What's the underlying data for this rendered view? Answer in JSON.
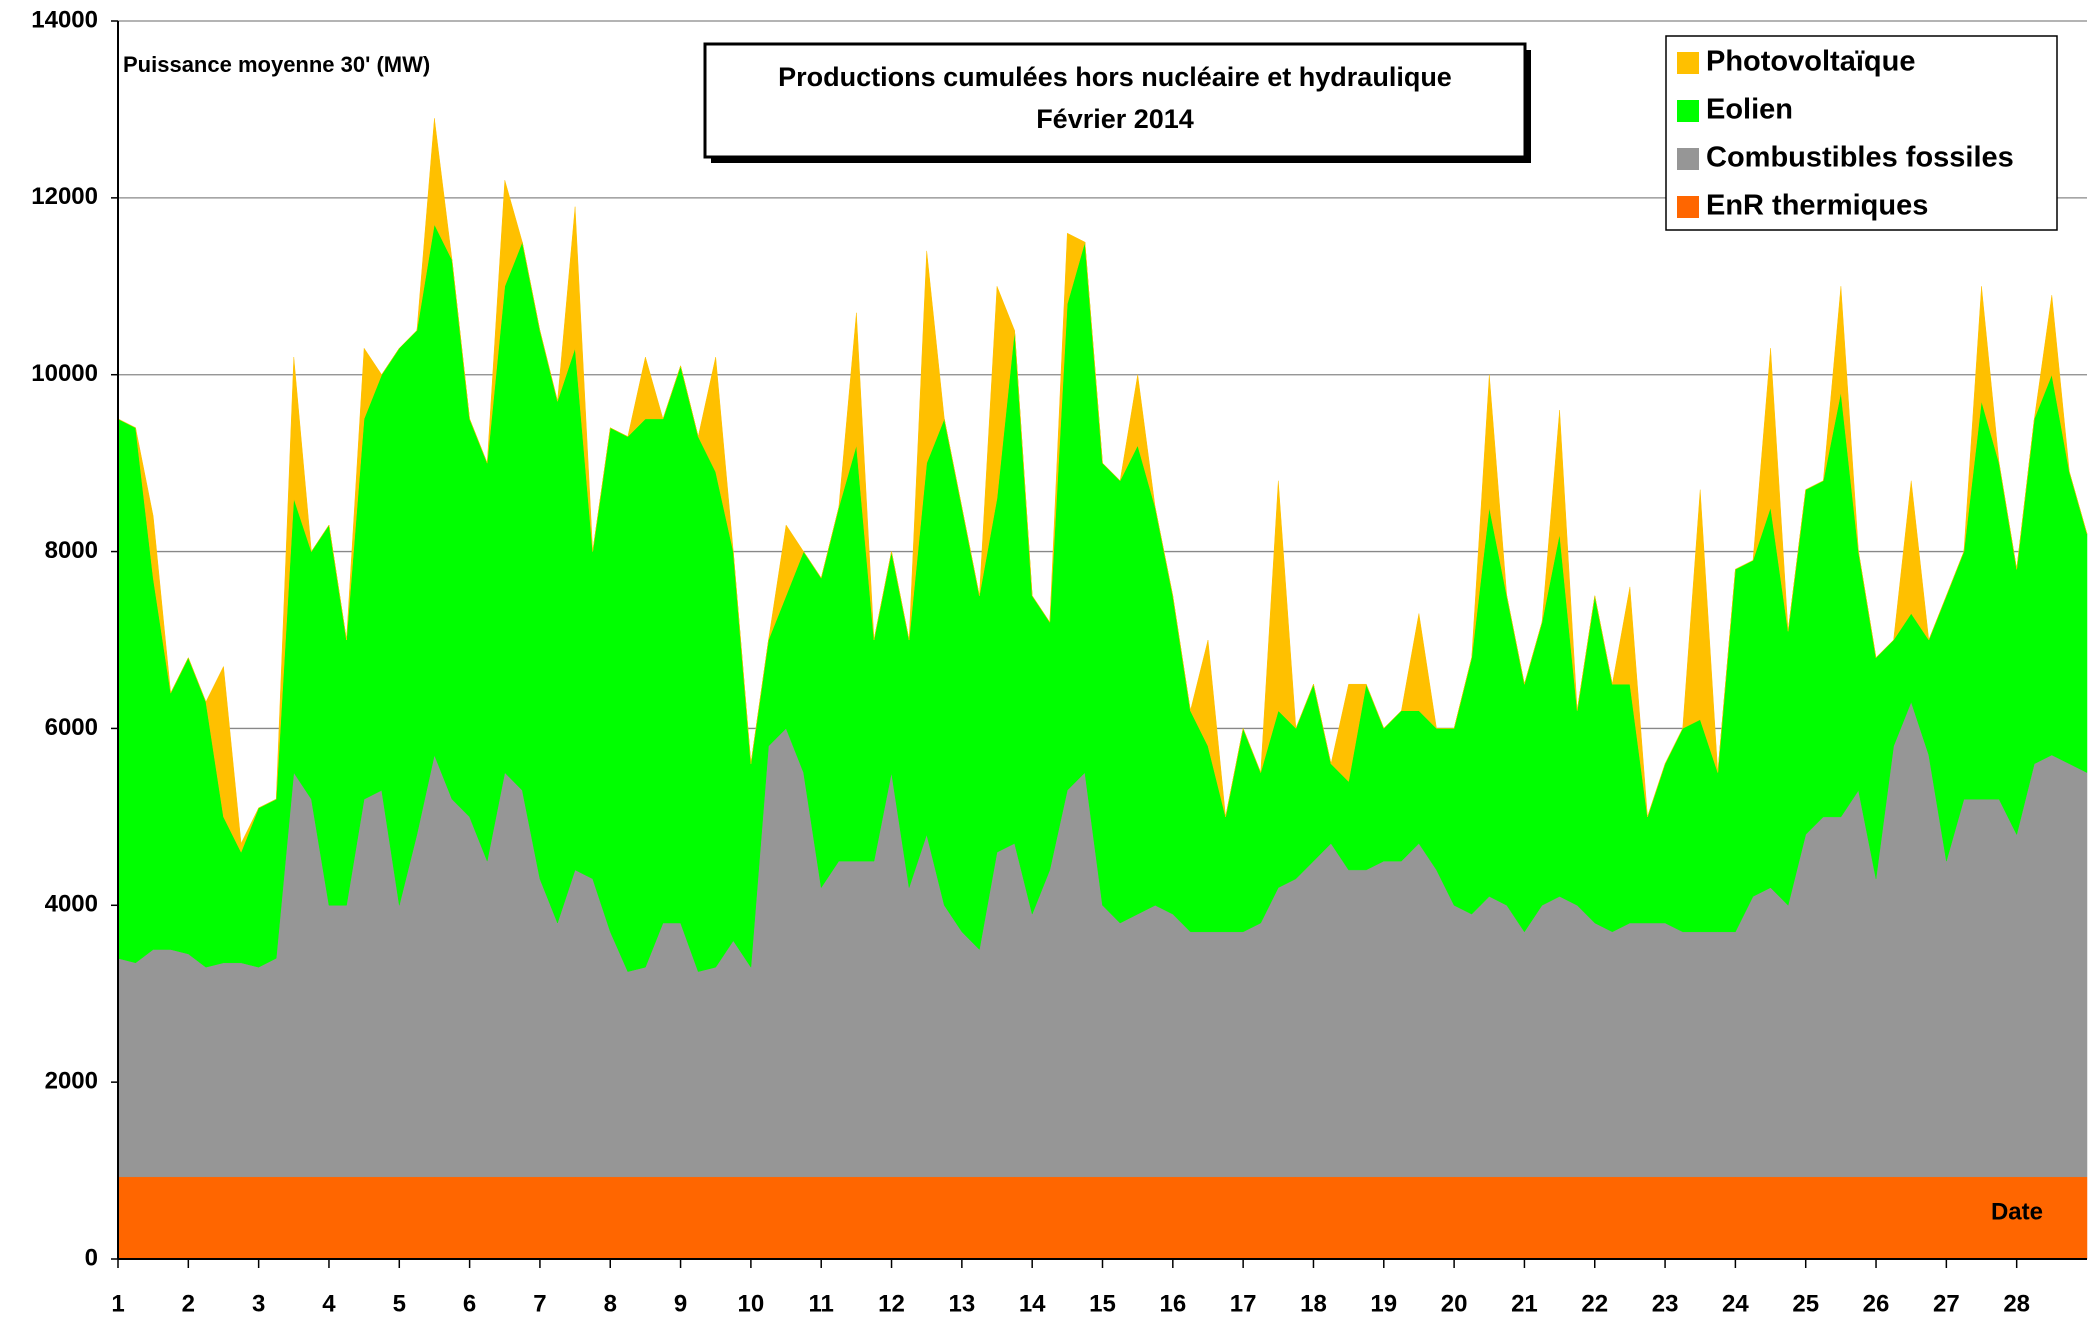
{
  "chart_data": {
    "type": "stacked-area",
    "title": [
      "Productions cumulées hors nucléaire et hydraulique",
      "Février 2014"
    ],
    "y_label": "Puissance moyenne 30' (MW)",
    "x_label": "Date",
    "x": [
      1,
      1.25,
      1.5,
      1.75,
      2,
      2.25,
      2.5,
      2.75,
      3,
      3.25,
      3.5,
      3.75,
      4,
      4.25,
      4.5,
      4.75,
      5,
      5.25,
      5.5,
      5.75,
      6,
      6.25,
      6.5,
      6.75,
      7,
      7.25,
      7.5,
      7.75,
      8,
      8.25,
      8.5,
      8.75,
      9,
      9.25,
      9.5,
      9.75,
      10,
      10.25,
      10.5,
      10.75,
      11,
      11.25,
      11.5,
      11.75,
      12,
      12.25,
      12.5,
      12.75,
      13,
      13.25,
      13.5,
      13.75,
      14,
      14.25,
      14.5,
      14.75,
      15,
      15.25,
      15.5,
      15.75,
      16,
      16.25,
      16.5,
      16.75,
      17,
      17.25,
      17.5,
      17.75,
      18,
      18.25,
      18.5,
      18.75,
      19,
      19.25,
      19.5,
      19.75,
      20,
      20.25,
      20.5,
      20.75,
      21,
      21.25,
      21.5,
      21.75,
      22,
      22.25,
      22.5,
      22.75,
      23,
      23.25,
      23.5,
      23.75,
      24,
      24.25,
      24.5,
      24.75,
      25,
      25.25,
      25.5,
      25.75,
      26,
      26.25,
      26.5,
      26.75,
      27,
      27.25,
      27.5,
      27.75,
      28,
      28.25,
      28.5,
      28.75,
      29
    ],
    "xlim": [
      1,
      29
    ],
    "xticks": [
      1,
      2,
      3,
      4,
      5,
      6,
      7,
      8,
      9,
      10,
      11,
      12,
      13,
      14,
      15,
      16,
      17,
      18,
      19,
      20,
      21,
      22,
      23,
      24,
      25,
      26,
      27,
      28
    ],
    "ylim": [
      0,
      14000
    ],
    "yticks": [
      0,
      2000,
      4000,
      6000,
      8000,
      10000,
      12000,
      14000
    ],
    "grid": true,
    "legend": "top-right",
    "series": [
      {
        "name": "Photovoltaïque",
        "color": "#ffc000",
        "values": [
          0,
          0,
          700,
          0,
          0,
          0,
          1700,
          100,
          0,
          0,
          1600,
          0,
          0,
          0,
          800,
          0,
          0,
          0,
          1200,
          0,
          0,
          0,
          1200,
          0,
          0,
          0,
          1600,
          0,
          0,
          0,
          700,
          0,
          0,
          0,
          1300,
          0,
          0,
          0,
          800,
          0,
          0,
          0,
          1500,
          0,
          0,
          0,
          2400,
          0,
          0,
          0,
          2400,
          0,
          0,
          0,
          800,
          0,
          0,
          0,
          800,
          0,
          0,
          0,
          1200,
          0,
          0,
          0,
          2600,
          0,
          0,
          0,
          1100,
          0,
          0,
          0,
          1100,
          0,
          0,
          0,
          1500,
          0,
          0,
          0,
          1400,
          0,
          0,
          0,
          1100,
          0,
          0,
          0,
          2600,
          0,
          0,
          0,
          1800,
          0,
          0,
          0,
          1200,
          0,
          0,
          0,
          1500,
          0,
          0,
          0,
          1300,
          0,
          0,
          0,
          900,
          0,
          0
        ]
      },
      {
        "name": "Eolien",
        "color": "#00ff00",
        "values": [
          6100,
          6050,
          4200,
          2900,
          3350,
          3000,
          1650,
          1250,
          1800,
          1800,
          3100,
          2800,
          4300,
          3000,
          4300,
          4700,
          6300,
          5700,
          6000,
          6100,
          4500,
          4500,
          5500,
          6200,
          6200,
          5900,
          5900,
          3700,
          5700,
          6050,
          6200,
          5700,
          6300,
          6050,
          5600,
          4400,
          2300,
          1200,
          1500,
          2500,
          3500,
          4000,
          4700,
          2500,
          2500,
          2800,
          4200,
          5500,
          4800,
          4000,
          4000,
          5800,
          3600,
          2800,
          5500,
          6000,
          5000,
          5000,
          5300,
          4500,
          3600,
          2500,
          2100,
          1300,
          2300,
          1700,
          2000,
          1700,
          2000,
          900,
          1000,
          2100,
          1500,
          1700,
          1500,
          1600,
          2000,
          2900,
          4400,
          3500,
          2800,
          3200,
          4100,
          2200,
          3700,
          2800,
          2700,
          1200,
          1800,
          2300,
          2400,
          1800,
          4100,
          3800,
          4300,
          3100,
          3900,
          3800,
          4800,
          2700,
          2500,
          1200,
          1000,
          1300,
          3000,
          2800,
          4500,
          3800,
          3000,
          3900,
          4300,
          3300,
          2700
        ]
      },
      {
        "name": "Combustibles fossiles",
        "color": "#969696",
        "values": [
          2470,
          2420,
          2570,
          2570,
          2520,
          2370,
          2420,
          2420,
          2370,
          2470,
          4570,
          4270,
          3070,
          3070,
          4270,
          4370,
          3070,
          3870,
          4770,
          4270,
          4070,
          3570,
          4570,
          4370,
          3370,
          2870,
          3470,
          3370,
          2770,
          2320,
          2370,
          2870,
          2870,
          2320,
          2370,
          2670,
          2370,
          4870,
          5070,
          4570,
          3270,
          3570,
          3570,
          3570,
          4570,
          3270,
          3870,
          3070,
          2770,
          2570,
          3670,
          3770,
          2970,
          3470,
          4370,
          4570,
          3070,
          2870,
          2970,
          3070,
          2970,
          2770,
          2770,
          2770,
          2770,
          2870,
          3270,
          3370,
          3570,
          3770,
          3470,
          3470,
          3570,
          3570,
          3770,
          3470,
          3070,
          2970,
          3170,
          3070,
          2770,
          3070,
          3170,
          3070,
          2870,
          2770,
          2870,
          2870,
          2870,
          2770,
          2770,
          2770,
          2770,
          3170,
          3270,
          3070,
          3870,
          4070,
          4070,
          4370,
          3370,
          4870,
          5370,
          4770,
          3570,
          4270,
          4270,
          4270,
          3870,
          4670,
          4770,
          4670,
          4570
        ]
      },
      {
        "name": "EnR thermiques",
        "color": "#ff6600",
        "values": [
          930,
          930,
          930,
          930,
          930,
          930,
          930,
          930,
          930,
          930,
          930,
          930,
          930,
          930,
          930,
          930,
          930,
          930,
          930,
          930,
          930,
          930,
          930,
          930,
          930,
          930,
          930,
          930,
          930,
          930,
          930,
          930,
          930,
          930,
          930,
          930,
          930,
          930,
          930,
          930,
          930,
          930,
          930,
          930,
          930,
          930,
          930,
          930,
          930,
          930,
          930,
          930,
          930,
          930,
          930,
          930,
          930,
          930,
          930,
          930,
          930,
          930,
          930,
          930,
          930,
          930,
          930,
          930,
          930,
          930,
          930,
          930,
          930,
          930,
          930,
          930,
          930,
          930,
          930,
          930,
          930,
          930,
          930,
          930,
          930,
          930,
          930,
          930,
          930,
          930,
          930,
          930,
          930,
          930,
          930,
          930,
          930,
          930,
          930,
          930,
          930,
          930,
          930,
          930,
          930,
          930,
          930,
          930,
          930,
          930,
          930,
          930,
          930
        ]
      }
    ]
  }
}
